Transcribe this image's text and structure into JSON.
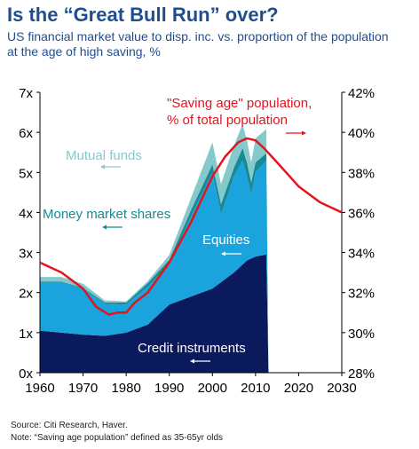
{
  "header": {
    "title": "Is the “Great Bull Run” over?",
    "subtitle": "US financial market value to disp. inc. vs. proportion of the population at the age of high saving, %"
  },
  "footnotes": {
    "source": "Source: Citi Research, Haver.",
    "note": "Note: “Saving age population” defined as 35-65yr olds"
  },
  "colors": {
    "credit": "#0a1a5c",
    "equities": "#1aa3dc",
    "money_market": "#168a95",
    "mutual_funds": "#86c9cd",
    "saving_line": "#e3141b",
    "text_blue": "#1f4e8f"
  },
  "chart_data": {
    "type": "area",
    "x_ticks": [
      "1960",
      "1970",
      "1980",
      "1990",
      "2000",
      "2010",
      "2020",
      "2030"
    ],
    "xlim": [
      1960,
      2030
    ],
    "left_axis": {
      "ylim": [
        0,
        7
      ],
      "ticks": [
        "0x",
        "1x",
        "2x",
        "3x",
        "4x",
        "5x",
        "6x",
        "7x"
      ]
    },
    "right_axis": {
      "ylim": [
        28,
        42
      ],
      "ticks": [
        "28%",
        "30%",
        "32%",
        "34%",
        "36%",
        "38%",
        "40%",
        "42%"
      ]
    },
    "stacked_series": [
      {
        "name": "Credit instruments",
        "x": [
          1960,
          1965,
          1970,
          1975,
          1980,
          1985,
          1990,
          1995,
          2000,
          2005,
          2008,
          2010,
          2012.5,
          2013
        ],
        "values": [
          1.05,
          1.0,
          0.95,
          0.92,
          1.0,
          1.2,
          1.7,
          1.9,
          2.1,
          2.5,
          2.8,
          2.9,
          2.95,
          0.05
        ]
      },
      {
        "name": "Equities",
        "x": [
          1960,
          1965,
          1970,
          1975,
          1980,
          1985,
          1990,
          1995,
          2000,
          2002,
          2005,
          2007,
          2009,
          2010,
          2012.5,
          2013
        ],
        "values": [
          1.2,
          1.25,
          1.15,
          0.8,
          0.7,
          0.95,
          1.0,
          2.0,
          2.9,
          1.7,
          2.4,
          2.6,
          1.6,
          2.1,
          2.35,
          0.0
        ]
      },
      {
        "name": "Money market shares",
        "x": [
          1960,
          1970,
          1980,
          1990,
          1995,
          2000,
          2002,
          2005,
          2008,
          2009,
          2010,
          2012.5,
          2013
        ],
        "values": [
          0.02,
          0.02,
          0.05,
          0.12,
          0.15,
          0.2,
          0.25,
          0.22,
          0.35,
          0.3,
          0.25,
          0.18,
          0.0
        ]
      },
      {
        "name": "Mutual funds",
        "x": [
          1960,
          1965,
          1970,
          1975,
          1980,
          1985,
          1990,
          1995,
          2000,
          2002,
          2005,
          2007,
          2009,
          2010,
          2012.5,
          2013
        ],
        "values": [
          0.12,
          0.12,
          0.1,
          0.05,
          0.03,
          0.05,
          0.12,
          0.3,
          0.55,
          0.5,
          0.55,
          0.6,
          0.5,
          0.6,
          0.6,
          0.0
        ]
      }
    ],
    "line_series": {
      "name": "\"Saving age\" population, % of total population",
      "axis": "right",
      "x": [
        1960,
        1965,
        1970,
        1973,
        1976,
        1978,
        1980,
        1982,
        1985,
        1990,
        1995,
        2000,
        2003,
        2006,
        2008,
        2010,
        2012,
        2015,
        2020,
        2025,
        2030
      ],
      "values": [
        33.5,
        33.0,
        32.2,
        31.3,
        30.9,
        31.0,
        31.0,
        31.5,
        32.0,
        33.5,
        35.5,
        37.8,
        38.8,
        39.5,
        39.7,
        39.6,
        39.2,
        38.5,
        37.3,
        36.5,
        36.0
      ]
    },
    "labels": {
      "mutual_funds": "Mutual funds",
      "money_market": "Money market shares",
      "equities": "Equities",
      "credit": "Credit instruments",
      "saving_line_1": "\"Saving age\" population,",
      "saving_line_2": "% of total population"
    }
  }
}
